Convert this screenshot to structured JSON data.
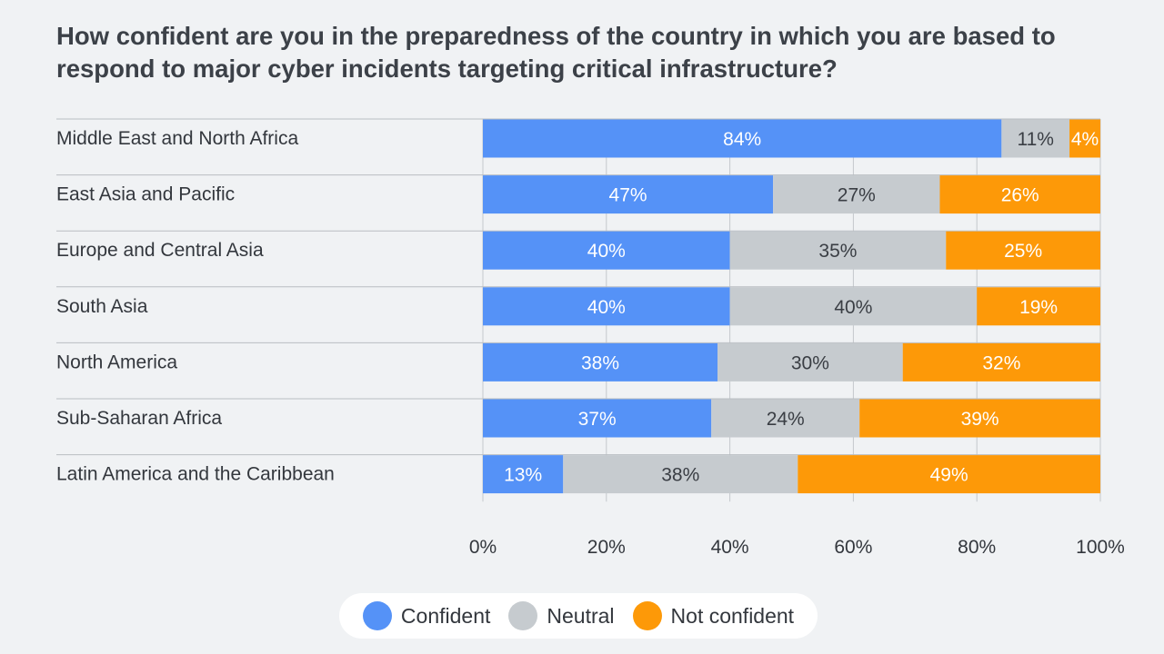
{
  "chart_data": {
    "type": "bar",
    "orientation": "horizontal",
    "stacked": true,
    "title": "How confident are you in the preparedness of the country in which you are based to respond to major cyber incidents targeting critical infrastructure?",
    "categories": [
      "Middle East and North Africa",
      "East Asia and Pacific",
      "Europe and Central Asia",
      "South Asia",
      "North America",
      "Sub-Saharan Africa",
      "Latin America and the Caribbean"
    ],
    "series": [
      {
        "name": "Confident",
        "color": "#5592f7",
        "text_color": "#ffffff",
        "values": [
          84,
          47,
          40,
          40,
          38,
          37,
          13
        ]
      },
      {
        "name": "Neutral",
        "color": "#c6cbcf",
        "text_color": "#3a3e44",
        "values": [
          11,
          27,
          35,
          40,
          30,
          24,
          38
        ]
      },
      {
        "name": "Not confident",
        "color": "#fd9908",
        "text_color": "#ffffff",
        "values": [
          4,
          26,
          25,
          19,
          32,
          39,
          49
        ]
      }
    ],
    "value_suffix": "%",
    "xlim": [
      0,
      100
    ],
    "xticks": [
      0,
      20,
      40,
      60,
      80,
      100
    ],
    "xtick_labels": [
      "0%",
      "20%",
      "40%",
      "60%",
      "80%",
      "100%"
    ],
    "grid": true,
    "legend_position": "bottom-center"
  }
}
